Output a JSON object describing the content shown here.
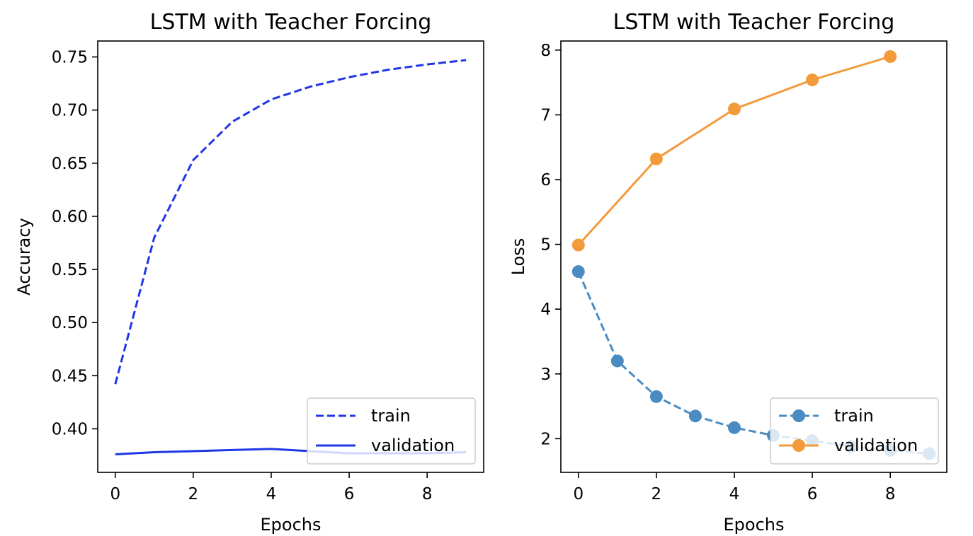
{
  "chart_data": [
    {
      "type": "line",
      "title": "LSTM with Teacher Forcing",
      "xlabel": "Epochs",
      "ylabel": "Accuracy",
      "xlim": [
        -0.45,
        9.45
      ],
      "ylim": [
        0.359,
        0.765
      ],
      "xticks": [
        0,
        2,
        4,
        6,
        8
      ],
      "yticks": [
        0.4,
        0.45,
        0.5,
        0.55,
        0.6,
        0.65,
        0.7,
        0.75
      ],
      "ytick_labels": [
        "0.40",
        "0.45",
        "0.50",
        "0.55",
        "0.60",
        "0.65",
        "0.70",
        "0.75"
      ],
      "grid": false,
      "legend_position": "lower-right",
      "series": [
        {
          "name": "train",
          "color": "#1f36e8",
          "linestyle": "dashed",
          "marker": "none",
          "x": [
            0,
            1,
            2,
            3,
            4,
            5,
            6,
            7,
            8,
            9
          ],
          "y": [
            0.442,
            0.58,
            0.653,
            0.689,
            0.71,
            0.722,
            0.731,
            0.738,
            0.743,
            0.747
          ]
        },
        {
          "name": "validation",
          "color": "#1f36e8",
          "linestyle": "solid",
          "marker": "none",
          "x": [
            0,
            1,
            2,
            3,
            4,
            5,
            6,
            7,
            8,
            9
          ],
          "y": [
            0.376,
            0.378,
            0.379,
            0.38,
            0.381,
            0.379,
            0.377,
            0.377,
            0.377,
            0.378
          ]
        }
      ]
    },
    {
      "type": "line",
      "title": "LSTM with Teacher Forcing",
      "xlabel": "Epochs",
      "ylabel": "Loss",
      "xlim": [
        -0.45,
        9.45
      ],
      "ylim": [
        1.48,
        8.14
      ],
      "xticks": [
        0,
        2,
        4,
        6,
        8
      ],
      "yticks": [
        2,
        3,
        4,
        5,
        6,
        7,
        8
      ],
      "ytick_labels": [
        "2",
        "3",
        "4",
        "5",
        "6",
        "7",
        "8"
      ],
      "grid": false,
      "legend_position": "lower-right",
      "series": [
        {
          "name": "train",
          "color": "#4a8cc1",
          "linestyle": "dashed",
          "marker": "circle",
          "x": [
            0,
            1,
            2,
            3,
            4,
            5,
            6,
            7,
            8,
            9
          ],
          "y": [
            4.58,
            3.2,
            2.65,
            2.35,
            2.17,
            2.05,
            1.97,
            1.88,
            1.82,
            1.77
          ]
        },
        {
          "name": "validation",
          "color": "#f39a3b",
          "linestyle": "solid",
          "marker": "circle",
          "x": [
            0,
            2,
            4,
            6,
            8
          ],
          "y": [
            4.99,
            6.32,
            7.09,
            7.54,
            7.9
          ]
        }
      ]
    }
  ]
}
